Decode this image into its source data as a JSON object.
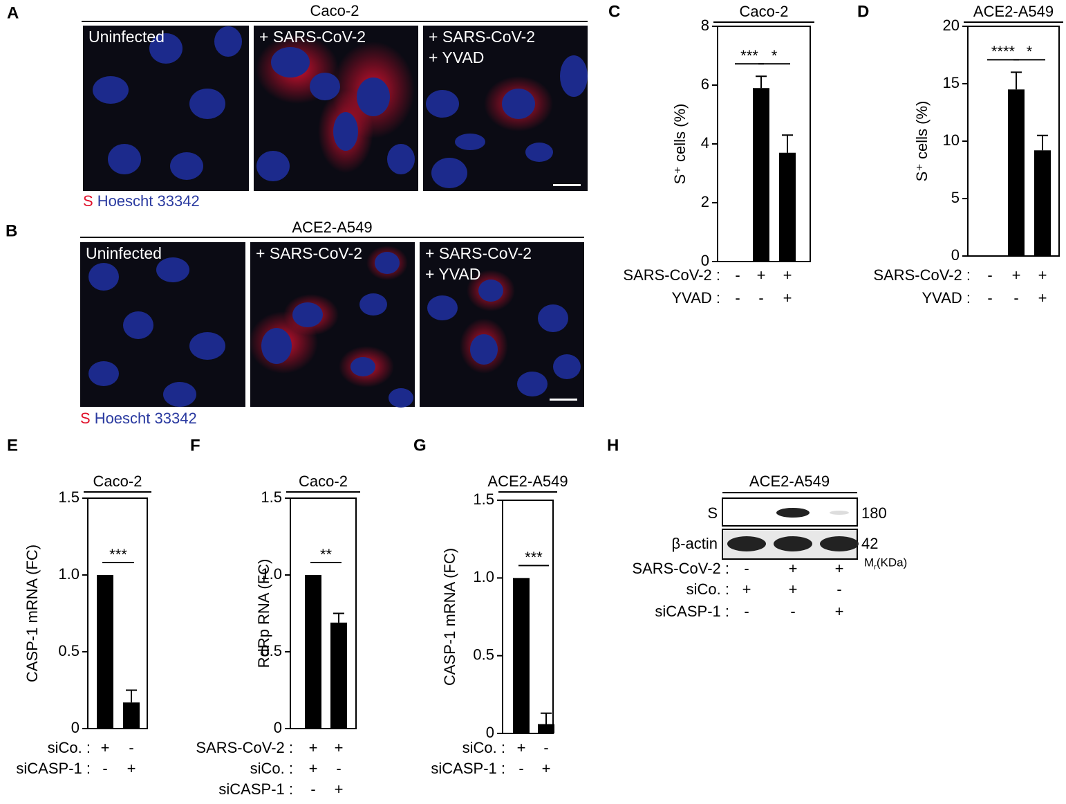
{
  "panels": {
    "A": {
      "letter": "A",
      "title": "Caco-2",
      "images": [
        [
          "Uninfected"
        ],
        [
          "+ SARS-CoV-2"
        ],
        [
          "+ SARS-CoV-2",
          "+ YVAD"
        ]
      ],
      "stain": "S",
      "counterstain": "Hoescht 33342"
    },
    "B": {
      "letter": "B",
      "title": "ACE2-A549",
      "images": [
        [
          "Uninfected"
        ],
        [
          "+ SARS-CoV-2"
        ],
        [
          "+ SARS-CoV-2",
          "+ YVAD"
        ]
      ],
      "stain": "S",
      "counterstain": "Hoescht 33342"
    },
    "H": {
      "letter": "H",
      "title": "ACE2-A549",
      "rows": [
        "S",
        "β-actin"
      ],
      "markers": [
        "180",
        "42"
      ],
      "mr": "M",
      "mr_sub": "r",
      "mr_unit": "(KDa)",
      "conditions": [
        {
          "label": "SARS-CoV-2 :",
          "values": [
            "-",
            "+",
            "+"
          ]
        },
        {
          "label": "siCo. :",
          "values": [
            "+",
            "+",
            "-"
          ]
        },
        {
          "label": "siCASP-1 :",
          "values": [
            "-",
            "-",
            "+"
          ]
        }
      ]
    }
  },
  "chart_data": [
    {
      "type": "bar",
      "panel": "C",
      "title": "Caco-2",
      "y_label": "S⁺ cells (%)",
      "values": [
        0,
        5.9,
        3.7
      ],
      "errors": [
        null,
        0.4,
        0.6
      ],
      "color": "#000000",
      "ylim": [
        0,
        8
      ],
      "yticks": [
        0,
        2,
        4,
        6,
        8
      ],
      "significance": [
        "***",
        "*"
      ],
      "conditions": [
        {
          "label": "SARS-CoV-2 :",
          "values": [
            "-",
            "+",
            "+"
          ]
        },
        {
          "label": "YVAD :",
          "values": [
            "-",
            "-",
            "+"
          ]
        }
      ]
    },
    {
      "type": "bar",
      "panel": "D",
      "title": "ACE2-A549",
      "y_label": "S⁺ cells (%)",
      "values": [
        0,
        14.5,
        9.2
      ],
      "errors": [
        null,
        1.5,
        1.3
      ],
      "color": "#000000",
      "ylim": [
        0,
        20
      ],
      "yticks": [
        0,
        5,
        10,
        15,
        20
      ],
      "significance": [
        "****",
        "*"
      ],
      "conditions": [
        {
          "label": "SARS-CoV-2 :",
          "values": [
            "-",
            "+",
            "+"
          ]
        },
        {
          "label": "YVAD :",
          "values": [
            "-",
            "-",
            "+"
          ]
        }
      ]
    },
    {
      "type": "bar",
      "panel": "E",
      "title": "Caco-2",
      "y_label": "CASP-1 mRNA (FC)",
      "values": [
        1.0,
        0.17
      ],
      "errors": [
        null,
        0.08
      ],
      "color": "#000000",
      "ylim": [
        0,
        1.5
      ],
      "yticks": [
        0,
        0.5,
        {
          "value": 1,
          "label": "1.0"
        },
        1.5
      ],
      "significance": [
        "***"
      ],
      "conditions": [
        {
          "label": "siCo. :",
          "values": [
            "+",
            "-"
          ]
        },
        {
          "label": "siCASP-1 :",
          "values": [
            "-",
            "+"
          ]
        }
      ]
    },
    {
      "type": "bar",
      "panel": "F",
      "title": "Caco-2",
      "y_label": "RdRp RNA (FC)",
      "values": [
        1.0,
        0.69
      ],
      "errors": [
        null,
        0.06
      ],
      "color": "#000000",
      "ylim": [
        0,
        1.5
      ],
      "yticks": [
        0,
        0.5,
        {
          "value": 1,
          "label": "1.0"
        },
        1.5
      ],
      "significance": [
        "**"
      ],
      "conditions": [
        {
          "label": "SARS-CoV-2 :",
          "values": [
            "+",
            "+"
          ]
        },
        {
          "label": "siCo. :",
          "values": [
            "+",
            "-"
          ]
        },
        {
          "label": "siCASP-1 :",
          "values": [
            "-",
            "+"
          ]
        }
      ]
    },
    {
      "type": "bar",
      "panel": "G",
      "title": "ACE2-A549",
      "y_label": "CASP-1 mRNA (FC)",
      "values": [
        1.0,
        0.06
      ],
      "errors": [
        null,
        0.07
      ],
      "color": "#000000",
      "ylim": [
        0,
        1.5
      ],
      "yticks": [
        0,
        0.5,
        {
          "value": 1,
          "label": "1.0"
        },
        1.5
      ],
      "significance": [
        "***"
      ],
      "conditions": [
        {
          "label": "siCo. :",
          "values": [
            "+",
            "-"
          ]
        },
        {
          "label": "siCASP-1 :",
          "values": [
            "-",
            "+"
          ]
        }
      ]
    }
  ]
}
